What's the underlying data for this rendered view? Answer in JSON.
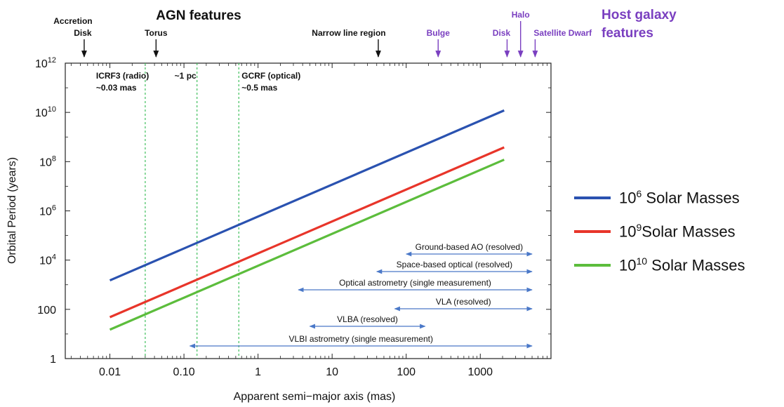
{
  "chart_data": {
    "type": "line",
    "title": "",
    "xlabel": "Apparent semi−major axis (mas)",
    "ylabel": "Orbital Period (years)",
    "x_scale": "log",
    "y_scale": "log",
    "xlim": [
      0.0025,
      9000
    ],
    "ylim": [
      1,
      1000000000000
    ],
    "grid": false,
    "legend_placement": "right",
    "x_ticks": [
      {
        "value": 0.01,
        "label": "0.01"
      },
      {
        "value": 0.1,
        "label": "0.10"
      },
      {
        "value": 1,
        "label": "1"
      },
      {
        "value": 10,
        "label": "10"
      },
      {
        "value": 100,
        "label": "100"
      },
      {
        "value": 1000,
        "label": "1000"
      }
    ],
    "y_ticks": [
      {
        "value": 1,
        "base": "1",
        "exp": ""
      },
      {
        "value": 100,
        "base": "100",
        "exp": ""
      },
      {
        "value": 10000,
        "base": "10",
        "exp": "4"
      },
      {
        "value": 1000000,
        "base": "10",
        "exp": "6"
      },
      {
        "value": 100000000,
        "base": "10",
        "exp": "8"
      },
      {
        "value": 10000000000,
        "base": "10",
        "exp": "10"
      },
      {
        "value": 1000000000000,
        "base": "10",
        "exp": "12"
      }
    ],
    "series": [
      {
        "name_base": "10",
        "name_exp": "6",
        "name_rest": " Solar Masses",
        "color": "#2a52b0",
        "x": [
          0.01,
          2100
        ],
        "y": [
          1500,
          12000000000
        ]
      },
      {
        "name_base": "10",
        "name_exp": "9",
        "name_rest": "Solar Masses",
        "color": "#e8352a",
        "x": [
          0.01,
          2100
        ],
        "y": [
          48,
          380000000
        ]
      },
      {
        "name_base": "10",
        "name_exp": "10",
        "name_rest": " Solar Masses",
        "color": "#5cbd3c",
        "x": [
          0.01,
          2100
        ],
        "y": [
          15,
          120000000
        ]
      }
    ],
    "vertical_markers": [
      {
        "x": 0.03,
        "label_lines": [
          "ICRF3 (radio)",
          "~0.03 mas"
        ],
        "color": "#3fbf5c"
      },
      {
        "x": 0.15,
        "label_lines": [
          "~1 pc"
        ],
        "color": "#3fbf5c"
      },
      {
        "x": 0.55,
        "label_lines": [
          "GCRF (optical)",
          "~0.5 mas"
        ],
        "color": "#3fbf5c"
      }
    ],
    "ranges": [
      {
        "label": "Ground-based AO (resolved)",
        "x_start": 100,
        "x_end": 5000,
        "color": "#4a78c8"
      },
      {
        "label": "Space-based optical (resolved)",
        "x_start": 40,
        "x_end": 5000,
        "color": "#4a78c8"
      },
      {
        "label": "Optical astrometry (single measurement)",
        "x_start": 3.5,
        "x_end": 5000,
        "color": "#4a78c8"
      },
      {
        "label": "VLA (resolved)",
        "x_start": 70,
        "x_end": 5000,
        "color": "#4a78c8"
      },
      {
        "label": "VLBA (resolved)",
        "x_start": 5,
        "x_end": 180,
        "color": "#4a78c8"
      },
      {
        "label": "VLBI astrometry (single measurement)",
        "x_start": 0.12,
        "x_end": 5000,
        "color": "#4a78c8"
      }
    ],
    "agn_group_title": "AGN features",
    "host_group_title_lines": [
      "Host galaxy",
      "features"
    ],
    "feature_markers": [
      {
        "label_lines": [
          "Accretion",
          "Disk"
        ],
        "x": 0.0045,
        "group": "agn",
        "color": "#111111"
      },
      {
        "label_lines": [
          "Torus"
        ],
        "x": 0.042,
        "group": "agn",
        "color": "#111111"
      },
      {
        "label_lines": [
          "Narrow line region"
        ],
        "x": 42,
        "group": "agn",
        "color": "#111111"
      },
      {
        "label_lines": [
          "Bulge"
        ],
        "x": 270,
        "group": "host",
        "color": "#7a3fc0"
      },
      {
        "label_lines": [
          "Disk"
        ],
        "x": 2300,
        "group": "host",
        "color": "#7a3fc0"
      },
      {
        "label_lines": [
          "Halo"
        ],
        "x": 3500,
        "group": "host",
        "color": "#7a3fc0"
      },
      {
        "label_lines": [
          "Satellite Dwarf"
        ],
        "x": 5500,
        "group": "host",
        "color": "#7a3fc0"
      }
    ]
  }
}
